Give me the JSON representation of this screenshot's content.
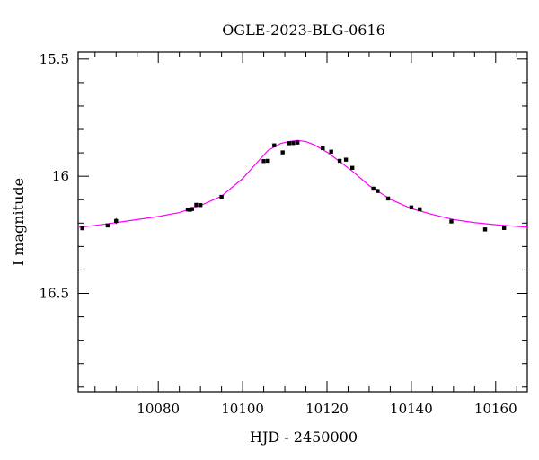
{
  "chart_data": {
    "type": "scatter",
    "title": "OGLE-2023-BLG-0616",
    "xlabel": "HJD - 2450000",
    "ylabel": "I magnitude",
    "xlim": [
      10061,
      10167.5
    ],
    "ylim": [
      16.92,
      15.47
    ],
    "y_inverted": true,
    "x_major_ticks": [
      10080,
      10100,
      10120,
      10140,
      10160
    ],
    "y_major_ticks": [
      15.5,
      16,
      16.5
    ],
    "x_tick_labels": [
      "10080",
      "10100",
      "10120",
      "10140",
      "10160"
    ],
    "y_tick_labels": [
      "15.5",
      "16",
      "16.5"
    ],
    "grid": false,
    "series": [
      {
        "kind": "points",
        "color": "#000000",
        "x": [
          10062,
          10068,
          10070,
          10087,
          10087.5,
          10088,
          10089,
          10090,
          10095,
          10105,
          10106,
          10107.5,
          10109.5,
          10111,
          10112,
          10113,
          10119,
          10121,
          10123,
          10124.5,
          10126,
          10131,
          10132,
          10134.5,
          10140,
          10142,
          10149.5,
          10157.5,
          10162
        ],
        "y": [
          16.222,
          16.21,
          16.191,
          16.142,
          16.143,
          16.14,
          16.122,
          16.123,
          16.088,
          15.935,
          15.934,
          15.868,
          15.898,
          15.859,
          15.858,
          15.856,
          15.88,
          15.895,
          15.934,
          15.929,
          15.964,
          16.053,
          16.063,
          16.095,
          16.133,
          16.141,
          16.193,
          16.227,
          16.221
        ],
        "err": [
          0.006,
          0.006,
          0.012,
          0.006,
          0.006,
          0.006,
          0.006,
          0.006,
          0.006,
          0.006,
          0.006,
          0.006,
          0.008,
          0.006,
          0.006,
          0.006,
          0.006,
          0.006,
          0.006,
          0.006,
          0.006,
          0.008,
          0.008,
          0.006,
          0.006,
          0.006,
          0.006,
          0.008,
          0.006
        ]
      },
      {
        "kind": "model",
        "color": "#ff00ff",
        "x": [
          10061,
          10065,
          10070,
          10075,
          10080,
          10085,
          10090,
          10095,
          10100,
          10103,
          10106,
          10109,
          10111,
          10113,
          10115,
          10117,
          10120,
          10123,
          10126,
          10130,
          10135,
          10140,
          10145,
          10150,
          10155,
          10160,
          10165,
          10167.5
        ],
        "y": [
          16.218,
          16.21,
          16.198,
          16.185,
          16.172,
          16.155,
          16.125,
          16.085,
          16.01,
          15.95,
          15.89,
          15.86,
          15.852,
          15.847,
          15.852,
          15.866,
          15.897,
          15.937,
          15.978,
          16.04,
          16.098,
          16.138,
          16.163,
          16.185,
          16.198,
          16.207,
          16.214,
          16.217
        ]
      }
    ]
  }
}
